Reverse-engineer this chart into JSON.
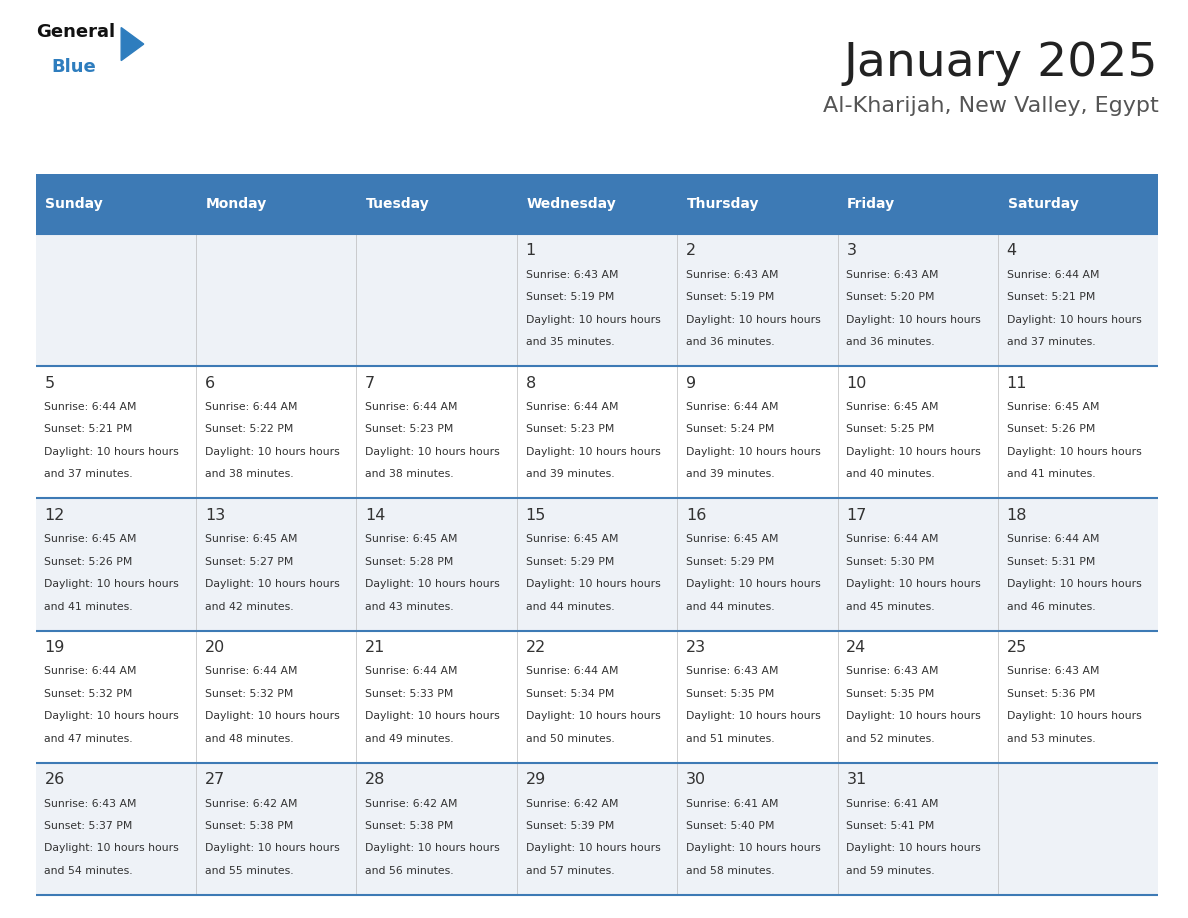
{
  "title": "January 2025",
  "subtitle": "Al-Kharijah, New Valley, Egypt",
  "header_color": "#3d7ab5",
  "header_text_color": "#ffffff",
  "day_names": [
    "Sunday",
    "Monday",
    "Tuesday",
    "Wednesday",
    "Thursday",
    "Friday",
    "Saturday"
  ],
  "title_color": "#222222",
  "subtitle_color": "#555555",
  "cell_bg_odd": "#eef2f7",
  "cell_bg_even": "#ffffff",
  "line_color": "#3d7ab5",
  "text_color": "#333333",
  "day_num_color": "#333333",
  "calendar_data": [
    {
      "day": 1,
      "col": 3,
      "row": 0,
      "sunrise": "6:43 AM",
      "sunset": "5:19 PM",
      "daylight": "10 hours and 35 minutes."
    },
    {
      "day": 2,
      "col": 4,
      "row": 0,
      "sunrise": "6:43 AM",
      "sunset": "5:19 PM",
      "daylight": "10 hours and 36 minutes."
    },
    {
      "day": 3,
      "col": 5,
      "row": 0,
      "sunrise": "6:43 AM",
      "sunset": "5:20 PM",
      "daylight": "10 hours and 36 minutes."
    },
    {
      "day": 4,
      "col": 6,
      "row": 0,
      "sunrise": "6:44 AM",
      "sunset": "5:21 PM",
      "daylight": "10 hours and 37 minutes."
    },
    {
      "day": 5,
      "col": 0,
      "row": 1,
      "sunrise": "6:44 AM",
      "sunset": "5:21 PM",
      "daylight": "10 hours and 37 minutes."
    },
    {
      "day": 6,
      "col": 1,
      "row": 1,
      "sunrise": "6:44 AM",
      "sunset": "5:22 PM",
      "daylight": "10 hours and 38 minutes."
    },
    {
      "day": 7,
      "col": 2,
      "row": 1,
      "sunrise": "6:44 AM",
      "sunset": "5:23 PM",
      "daylight": "10 hours and 38 minutes."
    },
    {
      "day": 8,
      "col": 3,
      "row": 1,
      "sunrise": "6:44 AM",
      "sunset": "5:23 PM",
      "daylight": "10 hours and 39 minutes."
    },
    {
      "day": 9,
      "col": 4,
      "row": 1,
      "sunrise": "6:44 AM",
      "sunset": "5:24 PM",
      "daylight": "10 hours and 39 minutes."
    },
    {
      "day": 10,
      "col": 5,
      "row": 1,
      "sunrise": "6:45 AM",
      "sunset": "5:25 PM",
      "daylight": "10 hours and 40 minutes."
    },
    {
      "day": 11,
      "col": 6,
      "row": 1,
      "sunrise": "6:45 AM",
      "sunset": "5:26 PM",
      "daylight": "10 hours and 41 minutes."
    },
    {
      "day": 12,
      "col": 0,
      "row": 2,
      "sunrise": "6:45 AM",
      "sunset": "5:26 PM",
      "daylight": "10 hours and 41 minutes."
    },
    {
      "day": 13,
      "col": 1,
      "row": 2,
      "sunrise": "6:45 AM",
      "sunset": "5:27 PM",
      "daylight": "10 hours and 42 minutes."
    },
    {
      "day": 14,
      "col": 2,
      "row": 2,
      "sunrise": "6:45 AM",
      "sunset": "5:28 PM",
      "daylight": "10 hours and 43 minutes."
    },
    {
      "day": 15,
      "col": 3,
      "row": 2,
      "sunrise": "6:45 AM",
      "sunset": "5:29 PM",
      "daylight": "10 hours and 44 minutes."
    },
    {
      "day": 16,
      "col": 4,
      "row": 2,
      "sunrise": "6:45 AM",
      "sunset": "5:29 PM",
      "daylight": "10 hours and 44 minutes."
    },
    {
      "day": 17,
      "col": 5,
      "row": 2,
      "sunrise": "6:44 AM",
      "sunset": "5:30 PM",
      "daylight": "10 hours and 45 minutes."
    },
    {
      "day": 18,
      "col": 6,
      "row": 2,
      "sunrise": "6:44 AM",
      "sunset": "5:31 PM",
      "daylight": "10 hours and 46 minutes."
    },
    {
      "day": 19,
      "col": 0,
      "row": 3,
      "sunrise": "6:44 AM",
      "sunset": "5:32 PM",
      "daylight": "10 hours and 47 minutes."
    },
    {
      "day": 20,
      "col": 1,
      "row": 3,
      "sunrise": "6:44 AM",
      "sunset": "5:32 PM",
      "daylight": "10 hours and 48 minutes."
    },
    {
      "day": 21,
      "col": 2,
      "row": 3,
      "sunrise": "6:44 AM",
      "sunset": "5:33 PM",
      "daylight": "10 hours and 49 minutes."
    },
    {
      "day": 22,
      "col": 3,
      "row": 3,
      "sunrise": "6:44 AM",
      "sunset": "5:34 PM",
      "daylight": "10 hours and 50 minutes."
    },
    {
      "day": 23,
      "col": 4,
      "row": 3,
      "sunrise": "6:43 AM",
      "sunset": "5:35 PM",
      "daylight": "10 hours and 51 minutes."
    },
    {
      "day": 24,
      "col": 5,
      "row": 3,
      "sunrise": "6:43 AM",
      "sunset": "5:35 PM",
      "daylight": "10 hours and 52 minutes."
    },
    {
      "day": 25,
      "col": 6,
      "row": 3,
      "sunrise": "6:43 AM",
      "sunset": "5:36 PM",
      "daylight": "10 hours and 53 minutes."
    },
    {
      "day": 26,
      "col": 0,
      "row": 4,
      "sunrise": "6:43 AM",
      "sunset": "5:37 PM",
      "daylight": "10 hours and 54 minutes."
    },
    {
      "day": 27,
      "col": 1,
      "row": 4,
      "sunrise": "6:42 AM",
      "sunset": "5:38 PM",
      "daylight": "10 hours and 55 minutes."
    },
    {
      "day": 28,
      "col": 2,
      "row": 4,
      "sunrise": "6:42 AM",
      "sunset": "5:38 PM",
      "daylight": "10 hours and 56 minutes."
    },
    {
      "day": 29,
      "col": 3,
      "row": 4,
      "sunrise": "6:42 AM",
      "sunset": "5:39 PM",
      "daylight": "10 hours and 57 minutes."
    },
    {
      "day": 30,
      "col": 4,
      "row": 4,
      "sunrise": "6:41 AM",
      "sunset": "5:40 PM",
      "daylight": "10 hours and 58 minutes."
    },
    {
      "day": 31,
      "col": 5,
      "row": 4,
      "sunrise": "6:41 AM",
      "sunset": "5:41 PM",
      "daylight": "10 hours and 59 minutes."
    }
  ]
}
